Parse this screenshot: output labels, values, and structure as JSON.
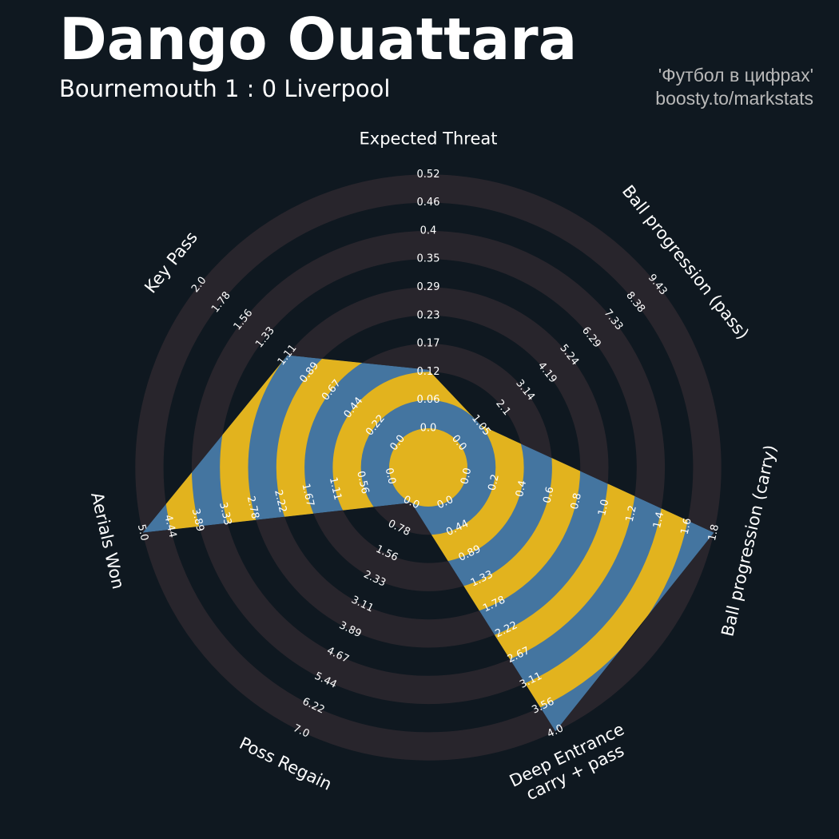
{
  "header": {
    "title": "Dango Ouattara",
    "subtitle": "Bournemouth 1 : 0 Liverpool",
    "credit_line1": "'Футбол в цифрах'",
    "credit_line2": "boosty.to/markstats"
  },
  "colors": {
    "background": "#0f1820",
    "ring": "#28252c",
    "fill_blue": "#4475a0",
    "fill_yellow": "#e2b31e"
  },
  "chart_data": {
    "type": "radar",
    "axes": [
      {
        "label": "Expected Threat",
        "ticks": [
          "0.0",
          "0.06",
          "0.12",
          "0.17",
          "0.23",
          "0.29",
          "0.35",
          "0.4",
          "0.46",
          "0.52"
        ],
        "max": 0.52,
        "value": 0.12
      },
      {
        "label": "Ball progression (pass)",
        "ticks": [
          "0.0",
          "1.05",
          "2.1",
          "3.14",
          "4.19",
          "5.24",
          "6.29",
          "7.33",
          "8.38",
          "9.43"
        ],
        "max": 9.43,
        "value": 1.05
      },
      {
        "label": "Ball progression (carry)",
        "ticks": [
          "0.0",
          "0.2",
          "0.4",
          "0.6",
          "0.8",
          "1.0",
          "1.2",
          "1.4",
          "1.6",
          "1.8"
        ],
        "max": 1.8,
        "value": 1.8
      },
      {
        "label": "Deep Entrance\ncarry + pass",
        "ticks": [
          "0.0",
          "0.44",
          "0.89",
          "1.33",
          "1.78",
          "2.22",
          "2.67",
          "3.11",
          "3.56",
          "4.0"
        ],
        "max": 4.0,
        "value": 4.0
      },
      {
        "label": "Poss Regain",
        "ticks": [
          "0.0",
          "0.78",
          "1.56",
          "2.33",
          "3.11",
          "3.89",
          "4.67",
          "5.44",
          "6.22",
          "7.0"
        ],
        "max": 7.0,
        "value": 0.0
      },
      {
        "label": "Aerials Won",
        "ticks": [
          "0.0",
          "0.56",
          "1.11",
          "1.67",
          "2.22",
          "2.78",
          "3.33",
          "3.89",
          "4.44",
          "5.0"
        ],
        "max": 5.0,
        "value": 5.0
      },
      {
        "label": "Key Pass",
        "ticks": [
          "0.0",
          "0.22",
          "0.44",
          "0.67",
          "0.89",
          "1.11",
          "1.33",
          "1.56",
          "1.78",
          "2.0"
        ],
        "max": 2.0,
        "value": 1.11
      }
    ]
  }
}
